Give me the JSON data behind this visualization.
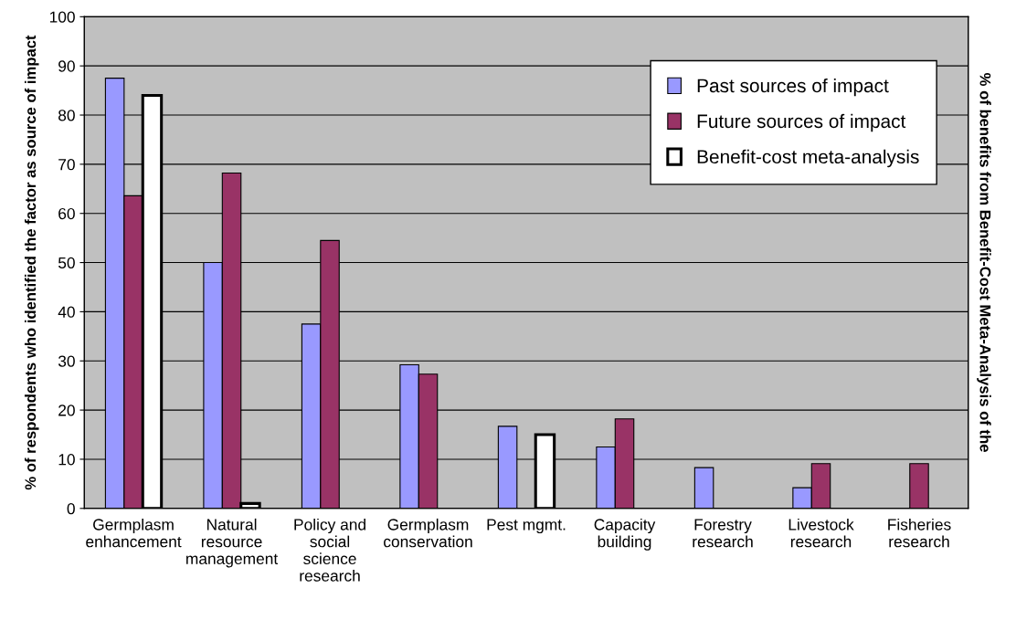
{
  "chart_data": {
    "type": "bar",
    "ylabel": "% of respondents who identified the factor as source of impact",
    "y2label": "% of benefits from Benefit-Cost Meta-Analysis of the",
    "categories": [
      "Germplasm\nenhancement",
      "Natural\nresource\nmanagement",
      "Policy and\nsocial\nscience\nresearch",
      "Germplasm\nconservation",
      "Pest mgmt.",
      "Capacity\nbuilding",
      "Forestry\nresearch",
      "Livestock\nresearch",
      "Fisheries\nresearch"
    ],
    "series": [
      {
        "name": "Past sources of impact",
        "color": "#9999ff",
        "values": [
          87.5,
          50,
          37.5,
          29.2,
          16.7,
          12.5,
          8.3,
          4.2,
          null
        ]
      },
      {
        "name": "Future sources of impact",
        "color": "#993366",
        "values": [
          63.6,
          68.2,
          54.5,
          27.3,
          null,
          18.2,
          null,
          9.1,
          9.1
        ]
      },
      {
        "name": "Benefit-cost meta-analysis",
        "color": "#ffffff",
        "values": [
          84,
          1,
          null,
          null,
          15,
          null,
          null,
          null,
          null
        ]
      }
    ],
    "ylim": [
      0,
      100
    ],
    "yticks": [
      0,
      10,
      20,
      30,
      40,
      50,
      60,
      70,
      80,
      90,
      100
    ],
    "grid": "y",
    "legend": "top right"
  }
}
